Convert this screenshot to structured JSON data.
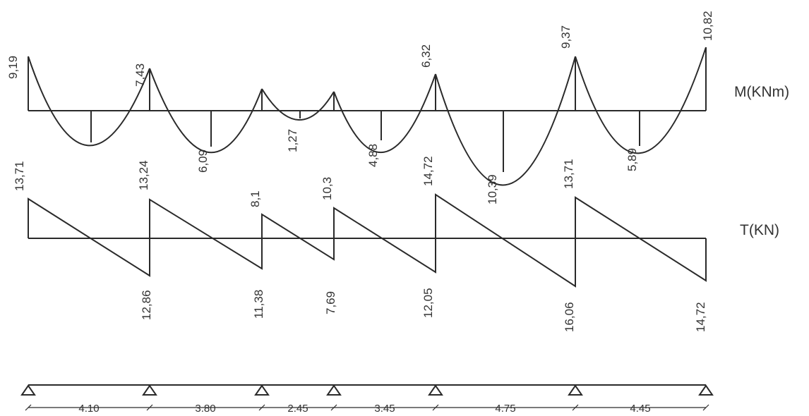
{
  "moment_diagram": {
    "title": "M(KNm)",
    "support_values": [
      "9,19",
      "7,43",
      "",
      "",
      "6,32",
      "9,37",
      "10,82"
    ],
    "span_values": [
      "",
      "6,09",
      "1,27",
      "4,88",
      "10,39",
      "5,89"
    ]
  },
  "shear_diagram": {
    "title": "T(KN)",
    "left_values": [
      "13,71",
      "13,24",
      "8,1",
      "10,3",
      "14,72",
      "13,71"
    ],
    "right_values": [
      "12,86",
      "11,38",
      "7,69",
      "12,05",
      "16,06",
      "14,72"
    ]
  },
  "beam": {
    "span_lengths": [
      "4.10",
      "3.80",
      "2.45",
      "3.45",
      "4.75",
      "4.45"
    ],
    "support_count": 7
  }
}
